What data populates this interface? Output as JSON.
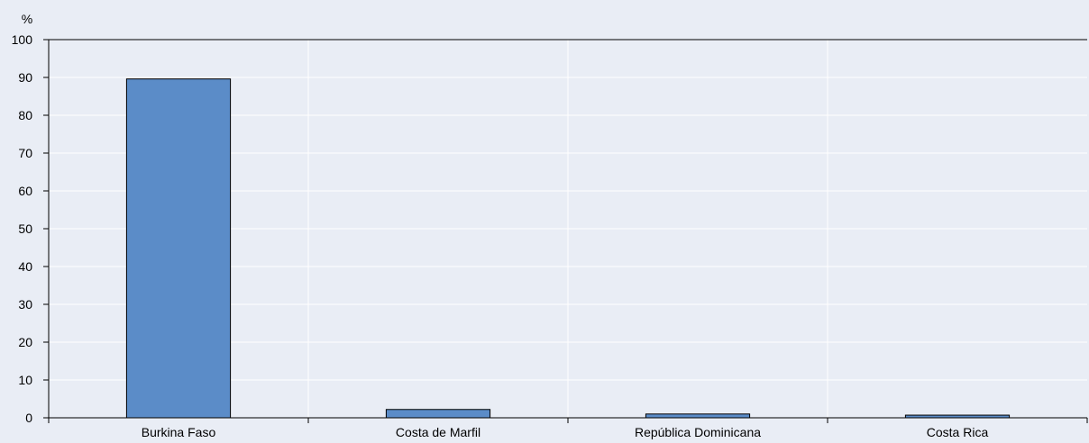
{
  "chart_data": {
    "type": "bar",
    "categories": [
      "Burkina Faso",
      "Costa de Marfil",
      "República Dominicana",
      "Costa Rica"
    ],
    "values": [
      89.6,
      2.2,
      1.0,
      0.7
    ],
    "title": "",
    "xlabel": "",
    "ylabel": "%",
    "ylim": [
      0,
      100
    ],
    "yticks": [
      0,
      10,
      20,
      30,
      40,
      50,
      60,
      70,
      80,
      90,
      100
    ],
    "grid": true,
    "colors": {
      "bar_fill": "#5b8cc8",
      "bar_stroke": "#000000",
      "background": "#e9edf5",
      "gridline": "#ffffff",
      "axis": "#000000"
    }
  }
}
